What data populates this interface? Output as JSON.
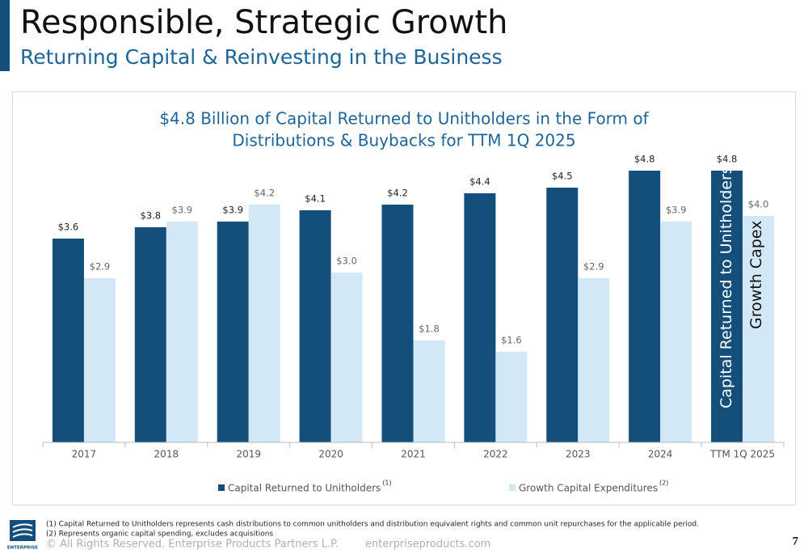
{
  "header": {
    "title": "Responsible, Strategic Growth",
    "subtitle": "Returning Capital & Reinvesting in the Business"
  },
  "chart_data": {
    "type": "bar",
    "title": [
      "$4.8 Billion of Capital Returned to Unitholders in the Form of",
      "Distributions & Buybacks for TTM 1Q 2025"
    ],
    "categories": [
      "2017",
      "2018",
      "2019",
      "2020",
      "2021",
      "2022",
      "2023",
      "2024",
      "TTM 1Q 2025"
    ],
    "series": [
      {
        "name": "Capital Returned to Unitholders",
        "note": "(1)",
        "color": "#134f7a",
        "values": [
          3.6,
          3.8,
          3.9,
          4.1,
          4.2,
          4.4,
          4.5,
          4.8,
          4.8
        ],
        "value_labels": [
          "$3.6",
          "$3.8",
          "$3.9",
          "$4.1",
          "$4.2",
          "$4.4",
          "$4.5",
          "$4.8",
          "$4.8"
        ]
      },
      {
        "name": "Growth Capital Expenditures",
        "note": "(2)",
        "color": "#d3e8f6",
        "values": [
          2.9,
          3.9,
          4.2,
          3.0,
          1.8,
          1.6,
          2.9,
          3.9,
          4.0
        ],
        "value_labels": [
          "$2.9",
          "$3.9",
          "$4.2",
          "$3.0",
          "$1.8",
          "$1.6",
          "$2.9",
          "$3.9",
          "$4.0"
        ]
      }
    ],
    "annotations": [
      "Capital Returned to Unitholders",
      "Growth Capex"
    ],
    "legend": "bottom"
  },
  "footnotes": [
    "(1)  Capital Returned to Unitholders represents cash distributions to common unitholders and distribution equivalent rights and common unit repurchases for the applicable period.",
    "(2)  Represents organic capital spending, excludes acquisitions"
  ],
  "footer": {
    "copyright": "© All Rights Reserved. Enterprise Products Partners L.P.",
    "website": "enterpriseproducts.com",
    "page": "7",
    "logo": "ENTERPRISE"
  }
}
